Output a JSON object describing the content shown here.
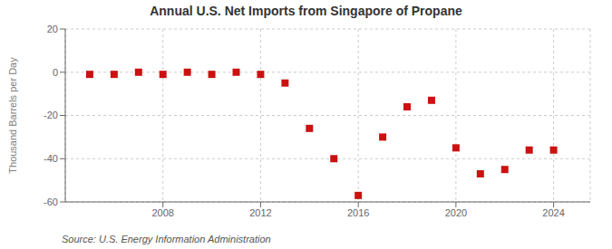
{
  "chart_data": {
    "type": "scatter",
    "title": "Annual U.S. Net Imports from Singapore of Propane",
    "ylabel": "Thousand Barrels per Day",
    "annotation": "Source: U.S. Energy Information Administration",
    "x": [
      2005,
      2006,
      2007,
      2008,
      2009,
      2010,
      2011,
      2012,
      2013,
      2014,
      2015,
      2016,
      2017,
      2018,
      2019,
      2020,
      2021,
      2022,
      2023,
      2024
    ],
    "values": [
      -1,
      -1,
      0,
      -1,
      0,
      -1,
      0,
      -1,
      -5,
      -26,
      -40,
      -57,
      -30,
      -16,
      -13,
      -35,
      -47,
      -45,
      -36,
      -36
    ],
    "color": "#cc1111",
    "marker": "square",
    "xlim": [
      2004.0,
      2025.5
    ],
    "xticks": [
      2008,
      2012,
      2016,
      2020,
      2024
    ],
    "ylim": [
      -60,
      20
    ],
    "yticks": [
      -60,
      -40,
      -20,
      0,
      20
    ],
    "grid": true
  }
}
